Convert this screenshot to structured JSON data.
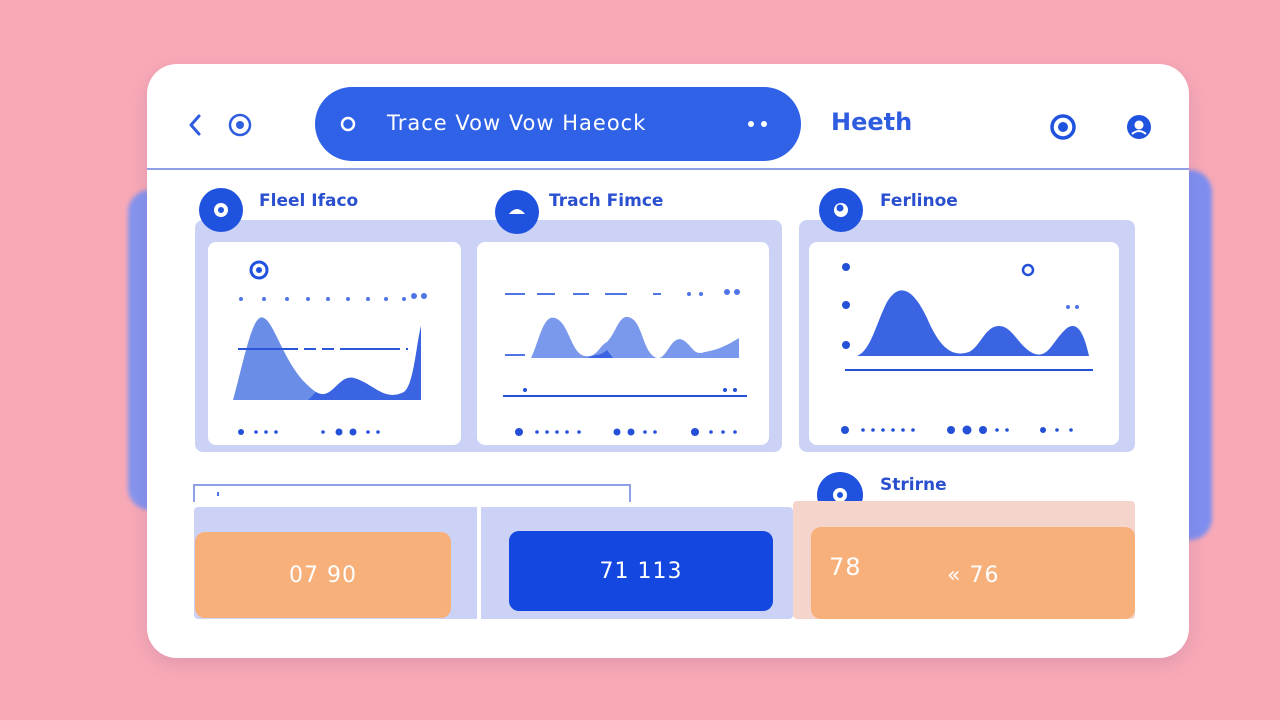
{
  "titlebar": {
    "search_text": "Trace Vow Vow Haeock",
    "app_name": "Heeth",
    "icons": [
      "back-icon",
      "record-icon",
      "search-dot-icon",
      "more-icon",
      "target-icon",
      "profile-icon"
    ]
  },
  "panels": [
    {
      "title": "Fleel Ifaco",
      "icon": "record-icon"
    },
    {
      "title": "Trach Fimce",
      "icon": "smile-icon"
    },
    {
      "title": "Ferlinoe",
      "icon": "record-icon"
    }
  ],
  "summary": {
    "title": "Strirne",
    "stats": [
      {
        "value": "07 90"
      },
      {
        "value": "71 113"
      },
      {
        "value": "78"
      },
      {
        "value": "« 76"
      }
    ]
  },
  "colors": {
    "accent": "#2f62e6",
    "panel_bg": "#ccd2f6",
    "orange": "#f8b07b",
    "background": "#f8a9b6"
  }
}
